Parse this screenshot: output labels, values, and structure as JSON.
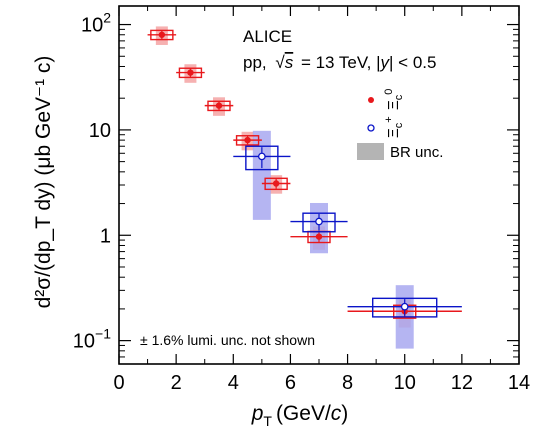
{
  "chart_data": {
    "type": "scatter",
    "xlabel_var": "p",
    "xlabel_sub": "T",
    "xlabel_unit": "(GeV/",
    "xlabel_unit_var": "c",
    "xlabel_close": ")",
    "ylabel_text": "d²σ/(dp_T dy) (μb GeV⁻¹ c)",
    "xlim": [
      0,
      14
    ],
    "ylim": [
      0.06,
      150
    ],
    "yscale": "log",
    "xticks": [
      0,
      2,
      4,
      6,
      8,
      10,
      12,
      14
    ],
    "xtick_labels": [
      "0",
      "2",
      "4",
      "6",
      "8",
      "10",
      "12",
      "14"
    ],
    "yticks": [
      0.1,
      1,
      10,
      100
    ],
    "ytick_labels": [
      {
        "base": "10",
        "exp": "−1"
      },
      {
        "base": "1",
        "exp": ""
      },
      {
        "base": "10",
        "exp": ""
      },
      {
        "base": "10",
        "exp": "2"
      }
    ],
    "annotations": {
      "experiment": "ALICE",
      "collision_prefix": "pp,",
      "sqrt_symbol": "√",
      "s_var": "s",
      "energy": "= 13 TeV, |",
      "y_var": "y",
      "rapidity": "| < 0.5",
      "note": "± 1.6% lumi. unc. not shown"
    },
    "legend": {
      "position": "top-right",
      "items": [
        {
          "symbol": "Ξ",
          "sub": "c",
          "sup": "0",
          "marker": "filled-circle",
          "color": "#e8181c"
        },
        {
          "symbol": "Ξ",
          "sub": "c",
          "sup": "+",
          "marker": "open-circle",
          "color": "#0a14c8"
        },
        {
          "label": "BR unc.",
          "marker": "box",
          "color": "#b4b4b4"
        }
      ]
    },
    "series": [
      {
        "marker": "filled-circle",
        "color": "#e8181c",
        "band_color": "#f4a3a3",
        "points": [
          {
            "x": 1.5,
            "y": 80,
            "xlow": 1,
            "xhigh": 2,
            "syst": 0.1,
            "br": 0.2
          },
          {
            "x": 2.5,
            "y": 35,
            "xlow": 2,
            "xhigh": 3,
            "syst": 0.1,
            "br": 0.2
          },
          {
            "x": 3.5,
            "y": 17,
            "xlow": 3,
            "xhigh": 4,
            "syst": 0.1,
            "br": 0.2
          },
          {
            "x": 4.5,
            "y": 8,
            "xlow": 4,
            "xhigh": 5,
            "syst": 0.1,
            "br": 0.2
          },
          {
            "x": 5.5,
            "y": 3.1,
            "xlow": 5,
            "xhigh": 6,
            "syst": 0.12,
            "br": 0.2
          },
          {
            "x": 7.0,
            "y": 0.97,
            "xlow": 6,
            "xhigh": 8,
            "syst": 0.12,
            "br": 0.25
          },
          {
            "x": 10.0,
            "y": 0.19,
            "xlow": 8,
            "xhigh": 12,
            "syst": 0.14,
            "br": 0.3
          }
        ]
      },
      {
        "marker": "open-circle",
        "color": "#0a14c8",
        "band_color": "#a8a8f0",
        "points": [
          {
            "x": 5.0,
            "y": 5.6,
            "xlow": 4,
            "xhigh": 6,
            "syst": 0.25,
            "br": 0.75
          },
          {
            "x": 7.0,
            "y": 1.35,
            "xlow": 6,
            "xhigh": 8,
            "syst": 0.2,
            "br": 0.5
          },
          {
            "x": 10.0,
            "y": 0.21,
            "xlow": 8,
            "xhigh": 12,
            "syst": 0.2,
            "br": 0.6
          }
        ]
      }
    ]
  }
}
